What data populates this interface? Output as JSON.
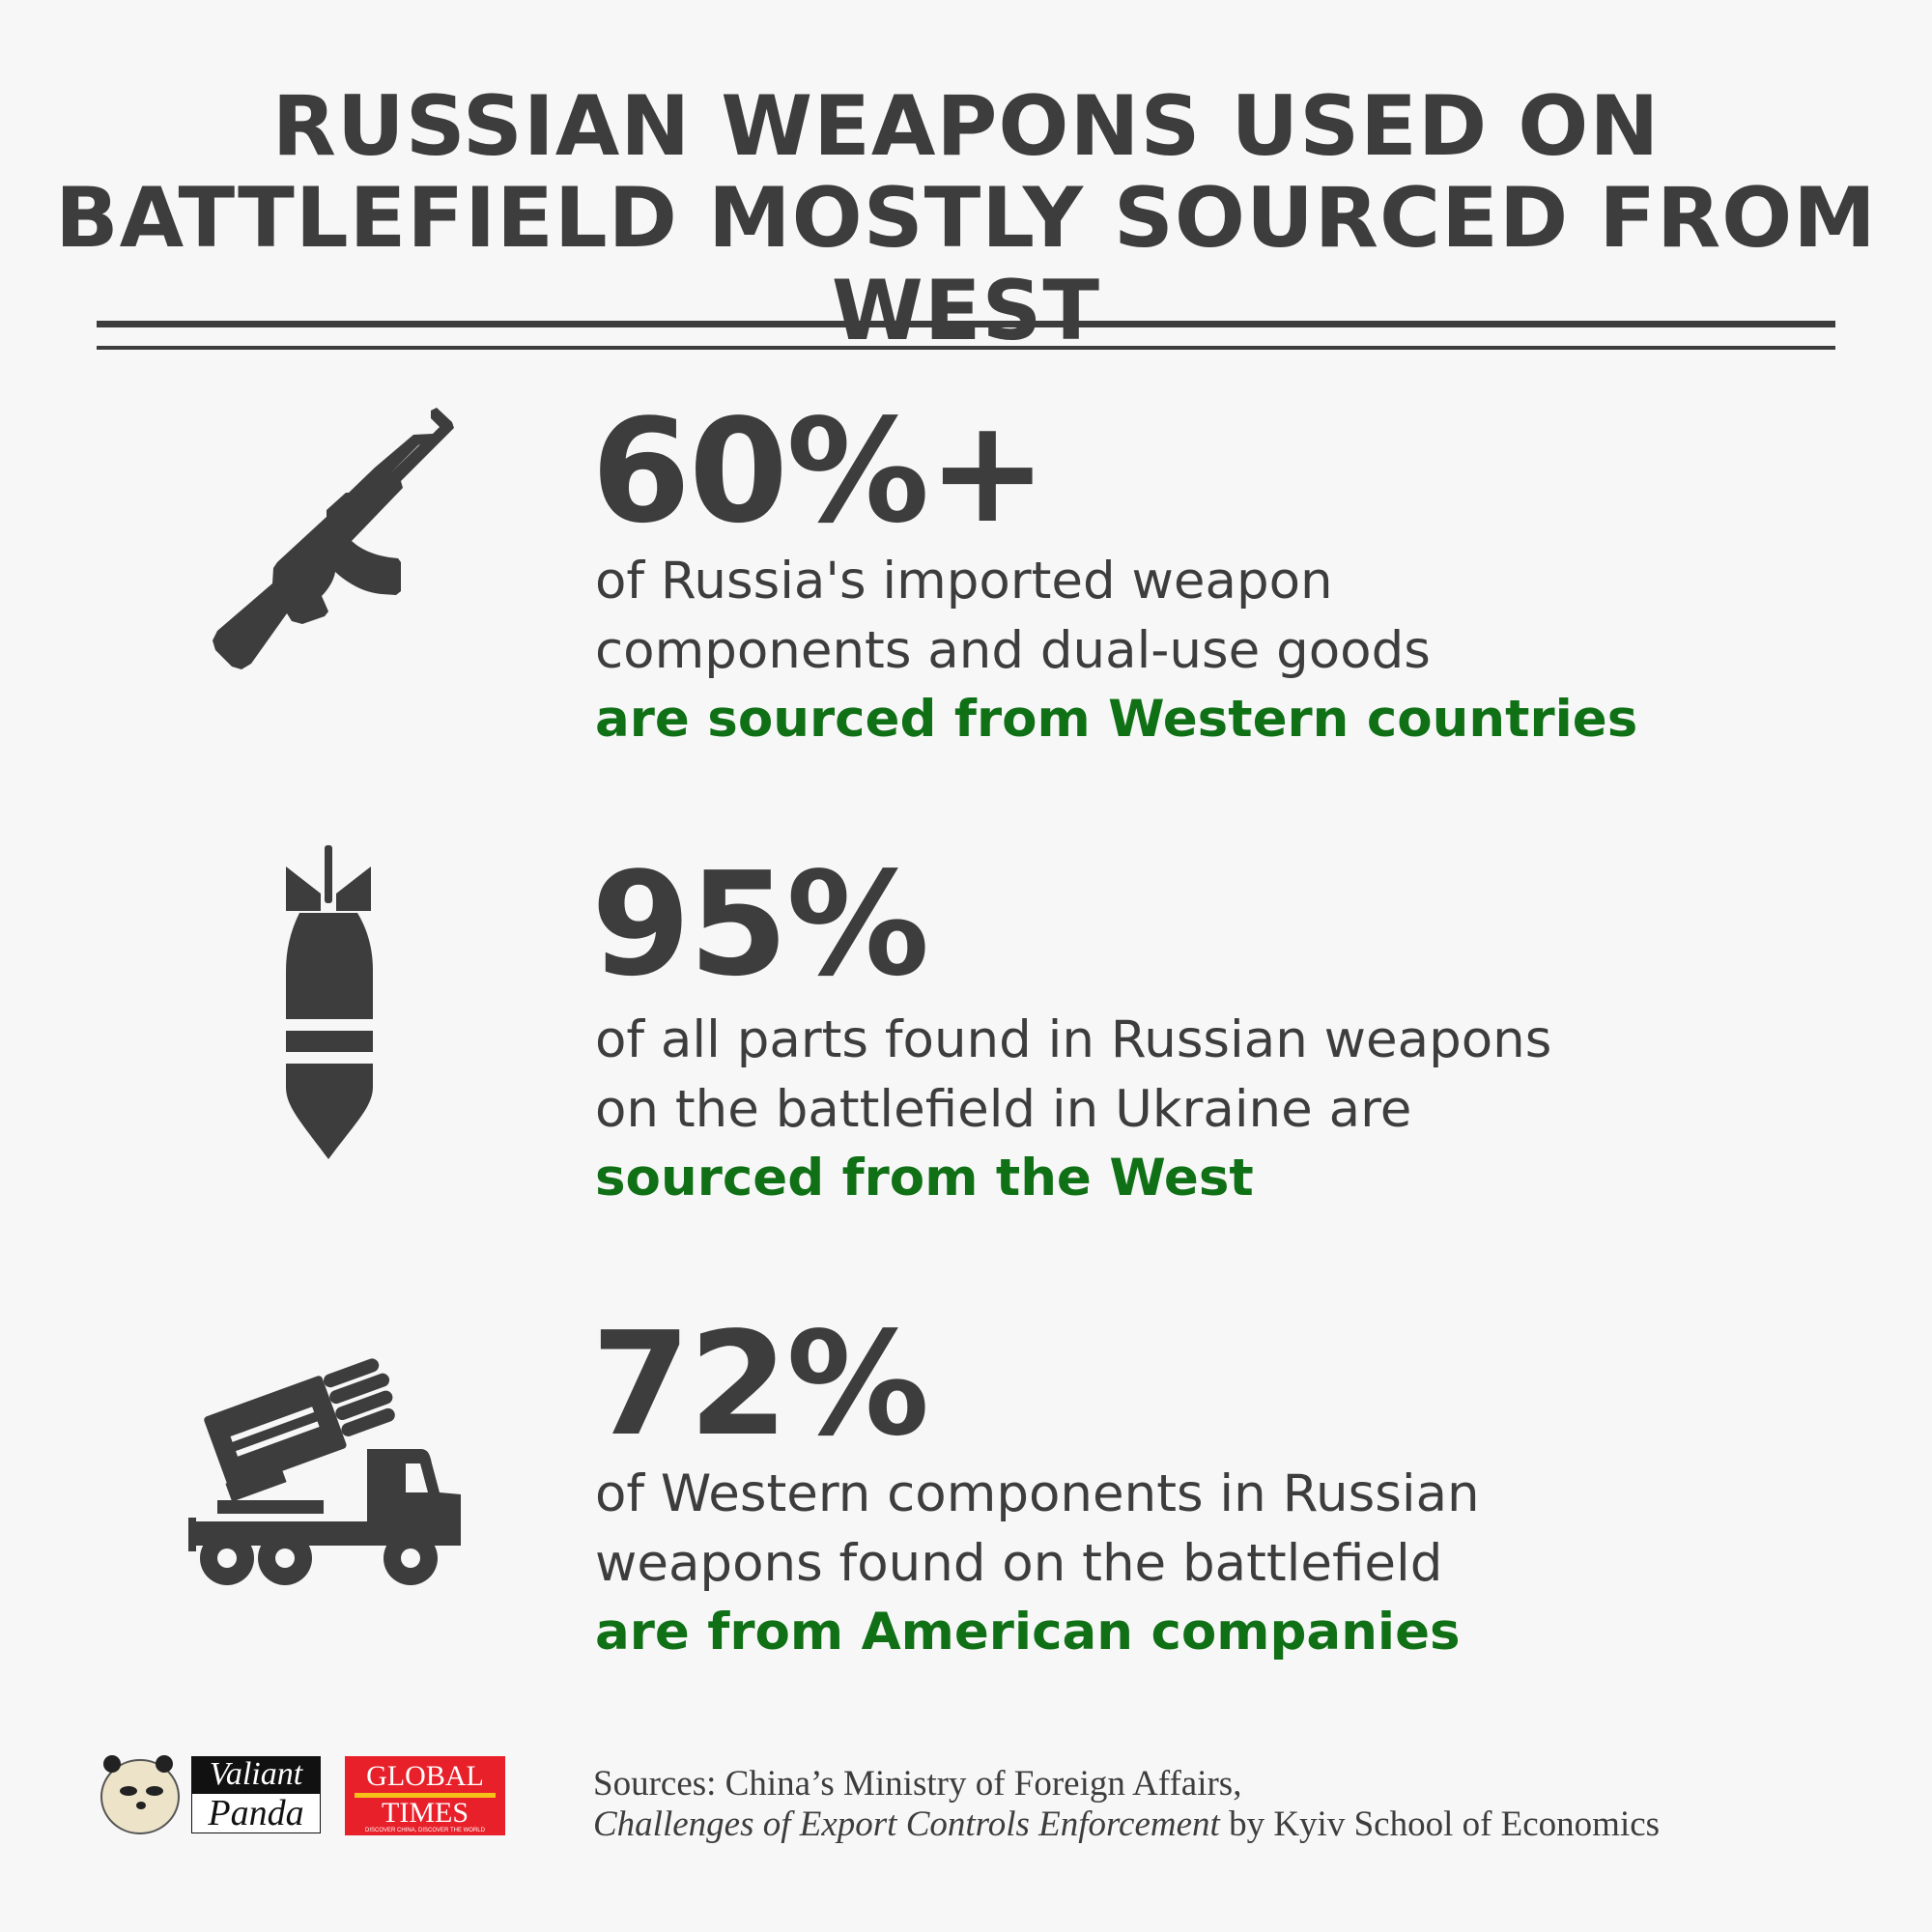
{
  "title": {
    "line1": "RUSSIAN WEAPONS USED ON",
    "line2": "BATTLEFIELD MOSTLY SOURCED FROM WEST"
  },
  "colors": {
    "text": "#3d3d3d",
    "accent_green": "#107016",
    "background": "#f7f7f7",
    "global_times_red": "#e8202a"
  },
  "stats": [
    {
      "icon": "rifle-icon",
      "value": "60%+",
      "line1": "of Russia's imported weapon",
      "line2": "components and dual-use goods",
      "highlight": "are sourced from Western countries"
    },
    {
      "icon": "bomb-icon",
      "value": "95%",
      "line1": "of all parts found in Russian weapons",
      "line2": "on the battlefield in Ukraine are",
      "highlight": "sourced from the West"
    },
    {
      "icon": "rocket-launcher-truck-icon",
      "value": "72%",
      "line1": "of Western components in Russian",
      "line2": "weapons found on the battlefield",
      "highlight": "are from American companies"
    }
  ],
  "footer": {
    "logo_valiant_panda": {
      "word1": "Valiant",
      "word2": "Panda"
    },
    "logo_global_times": {
      "word1": "GLOBAL",
      "word2": "TIMES",
      "tagline": "DISCOVER CHINA, DISCOVER THE WORLD"
    },
    "sources_line1": "Sources: China’s Ministry of Foreign Affairs,",
    "sources_italic": "Challenges of Export Controls Enforcement",
    "sources_rest": " by Kyiv School of Economics"
  }
}
